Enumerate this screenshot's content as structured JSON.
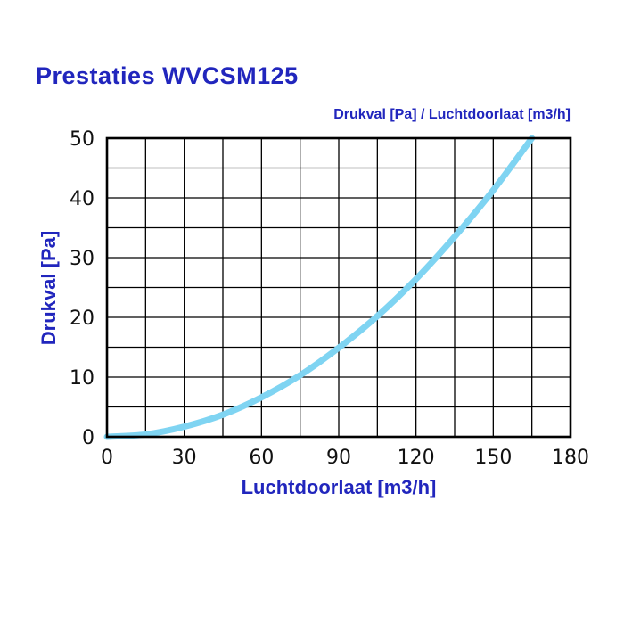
{
  "page": {
    "title": "Prestaties WVCSM125"
  },
  "colors": {
    "accent": "#2126bd",
    "curve": "#7fd4f2",
    "grid": "#000000",
    "tick_text": "#111111",
    "background": "#ffffff"
  },
  "chart_data": {
    "type": "line",
    "title": "Drukval [Pa] / Luchtdoorlaat [m3/h]",
    "xlabel": "Luchtdoorlaat [m3/h]",
    "ylabel": "Drukval [Pa]",
    "xlim": [
      0,
      180
    ],
    "ylim": [
      0,
      50
    ],
    "x_major_ticks": [
      0,
      30,
      60,
      90,
      120,
      150,
      180
    ],
    "x_minor_step": 15,
    "y_major_ticks": [
      0,
      10,
      20,
      30,
      40,
      50
    ],
    "y_minor_step": 5,
    "grid": true,
    "legend": "none",
    "series": [
      {
        "name": "Drukval",
        "x": [
          0,
          15,
          30,
          45,
          60,
          75,
          90,
          105,
          120,
          135,
          150,
          165
        ],
        "y": [
          0,
          0.4,
          1.7,
          3.7,
          6.6,
          10.3,
          14.9,
          20.2,
          26.4,
          33.5,
          41.3,
          50
        ]
      }
    ]
  }
}
